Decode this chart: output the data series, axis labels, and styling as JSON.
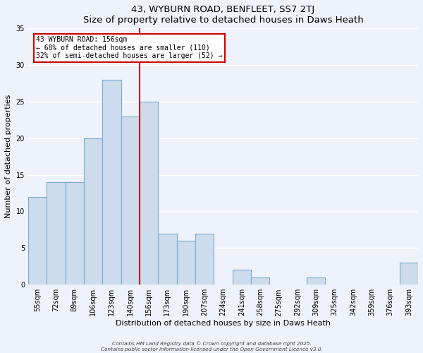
{
  "title": "43, WYBURN ROAD, BENFLEET, SS7 2TJ",
  "subtitle": "Size of property relative to detached houses in Daws Heath",
  "xlabel": "Distribution of detached houses by size in Daws Heath",
  "ylabel": "Number of detached properties",
  "categories": [
    "55sqm",
    "72sqm",
    "89sqm",
    "106sqm",
    "123sqm",
    "140sqm",
    "156sqm",
    "173sqm",
    "190sqm",
    "207sqm",
    "224sqm",
    "241sqm",
    "258sqm",
    "275sqm",
    "292sqm",
    "309sqm",
    "325sqm",
    "342sqm",
    "359sqm",
    "376sqm",
    "393sqm"
  ],
  "values": [
    12,
    14,
    14,
    20,
    28,
    23,
    25,
    7,
    6,
    7,
    0,
    2,
    1,
    0,
    0,
    1,
    0,
    0,
    0,
    0,
    3
  ],
  "highlight_index": 6,
  "bar_color": "#ccdcec",
  "bar_edge_color": "#7aabcf",
  "highlight_line_color": "#cc0000",
  "ylim": [
    0,
    35
  ],
  "yticks": [
    0,
    5,
    10,
    15,
    20,
    25,
    30,
    35
  ],
  "annotation_title": "43 WYBURN ROAD: 156sqm",
  "annotation_line1": "← 68% of detached houses are smaller (110)",
  "annotation_line2": "32% of semi-detached houses are larger (52) →",
  "background_color": "#eef2fa",
  "grid_color": "#ffffff",
  "footer_line1": "Contains HM Land Registry data © Crown copyright and database right 2025.",
  "footer_line2": "Contains public sector information licensed under the Open Government Licence v3.0."
}
